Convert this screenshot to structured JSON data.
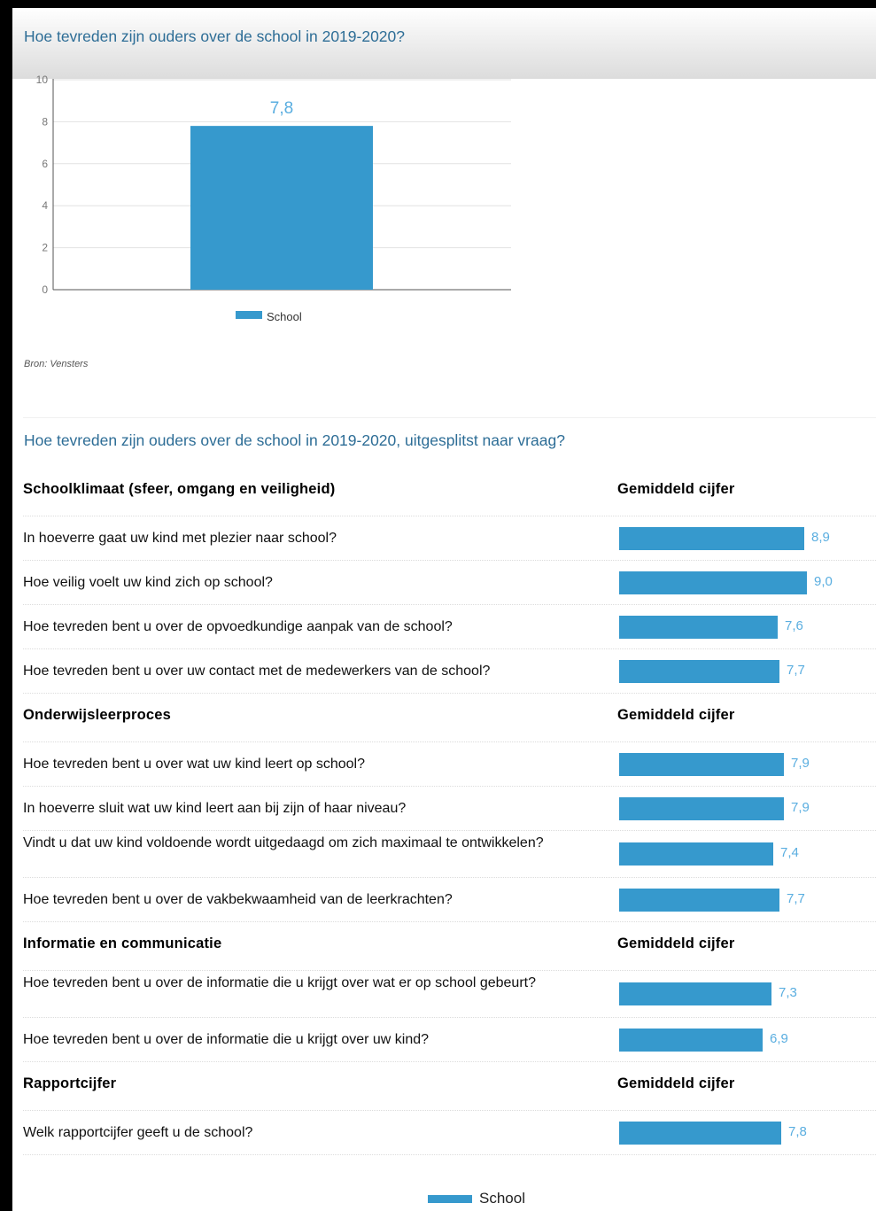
{
  "title": "Hoe tevreden zijn ouders over de school in 2019-2020?",
  "source": "Bron: Vensters",
  "subtitle": "Hoe tevreden zijn ouders over de school in 2019-2020, uitgesplitst naar vraag?",
  "colors": {
    "bar": "#3699cd",
    "value_label": "#5aaee0",
    "title": "#2d6d96"
  },
  "chart_data": [
    {
      "type": "bar",
      "title": "Hoe tevreden zijn ouders over de school in 2019-2020?",
      "categories": [
        "School"
      ],
      "series": [
        {
          "name": "School",
          "values": [
            7.8
          ]
        }
      ],
      "data_labels": [
        "7,8"
      ],
      "ylim": [
        0,
        10
      ],
      "yticks": [
        "0",
        "2",
        "4",
        "6",
        "8",
        "10"
      ],
      "legend": "bottom",
      "grid": true
    },
    {
      "type": "bar",
      "orientation": "horizontal",
      "title": "Hoe tevreden zijn ouders over de school in 2019-2020, uitgesplitst naar vraag?",
      "column_header": "Gemiddeld cijfer",
      "legend_label": "School",
      "legend": "bottom",
      "xlim": [
        0,
        10
      ],
      "sections": [
        {
          "name": "Schoolklimaat (sfeer, omgang en veiligheid)",
          "items": [
            {
              "question": "In hoeverre gaat uw kind met plezier naar school?",
              "value": 8.9,
              "label": "8,9"
            },
            {
              "question": "Hoe veilig voelt uw kind zich op school?",
              "value": 9.0,
              "label": "9,0"
            },
            {
              "question": "Hoe tevreden bent u over de opvoedkundige aanpak van de school?",
              "value": 7.6,
              "label": "7,6"
            },
            {
              "question": "Hoe tevreden bent u over uw contact met de medewerkers van de school?",
              "value": 7.7,
              "label": "7,7"
            }
          ]
        },
        {
          "name": "Onderwijsleerproces",
          "items": [
            {
              "question": "Hoe tevreden bent u over wat uw kind leert op school?",
              "value": 7.9,
              "label": "7,9"
            },
            {
              "question": "In hoeverre sluit wat uw kind leert aan bij zijn of haar niveau?",
              "value": 7.9,
              "label": "7,9"
            },
            {
              "question": "Vindt u dat uw kind voldoende wordt uitgedaagd om zich maximaal te ontwikkelen?",
              "value": 7.4,
              "label": "7,4"
            },
            {
              "question": "Hoe tevreden bent u over de vakbekwaamheid van de leerkrachten?",
              "value": 7.7,
              "label": "7,7"
            }
          ]
        },
        {
          "name": "Informatie en communicatie",
          "items": [
            {
              "question": "Hoe tevreden bent u over de informatie die u krijgt over wat er op school gebeurt?",
              "value": 7.3,
              "label": "7,3"
            },
            {
              "question": "Hoe tevreden bent u over de informatie die u krijgt over uw kind?",
              "value": 6.9,
              "label": "6,9"
            }
          ]
        },
        {
          "name": "Rapportcijfer",
          "items": [
            {
              "question": "Welk rapportcijfer geeft u de school?",
              "value": 7.8,
              "label": "7,8"
            }
          ]
        }
      ]
    }
  ]
}
